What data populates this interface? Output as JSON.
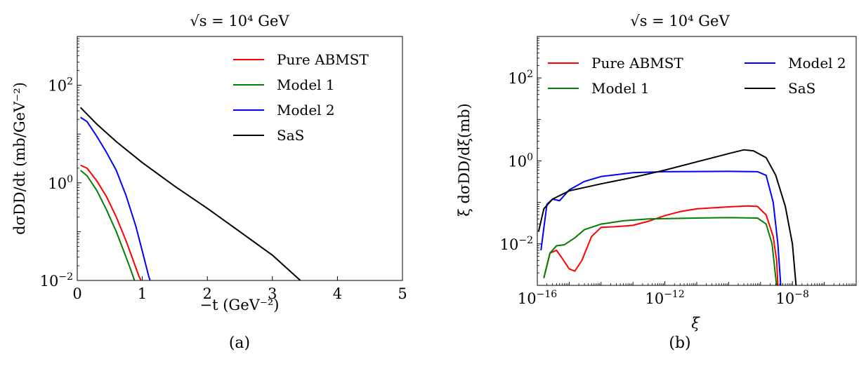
{
  "figure": {
    "panels": [
      {
        "title": "√s = 10⁴ GeV",
        "xlabel": "−t (GeV⁻²)",
        "ylabel": "dσDD/dt (mb/GeV⁻²)",
        "caption": "(a)"
      },
      {
        "title": "√s = 10⁴ GeV",
        "xlabel": "ξ",
        "ylabel": "ξ dσDD/dξ(mb)",
        "caption": "(b)"
      }
    ]
  },
  "chart_data": [
    {
      "type": "line",
      "title": "√s = 10⁴ GeV",
      "xlabel": "−t (GeV⁻²)",
      "ylabel": "dσDD/dt (mb/GeV⁻²)",
      "xscale": "linear",
      "yscale": "log",
      "xlim": [
        0,
        5
      ],
      "ylim": [
        0.01,
        1000
      ],
      "xticks": [
        0,
        1,
        2,
        3,
        4,
        5
      ],
      "xtick_labels": [
        "0",
        "1",
        "2",
        "3",
        "4",
        "5"
      ],
      "yticks": [
        0.01,
        1,
        100
      ],
      "ytick_labels": [
        [
          "10",
          "−2"
        ],
        [
          "10",
          "0"
        ],
        [
          "10",
          "2"
        ]
      ],
      "legend_position": "top-right",
      "legend_columns": 1,
      "series": [
        {
          "name": "Pure ABMST",
          "color": "#ff0000",
          "points": [
            [
              0.05,
              2.3
            ],
            [
              0.15,
              2.0
            ],
            [
              0.3,
              1.1
            ],
            [
              0.45,
              0.52
            ],
            [
              0.6,
              0.2
            ],
            [
              0.75,
              0.065
            ],
            [
              0.85,
              0.028
            ],
            [
              0.95,
              0.012
            ],
            [
              0.98,
              0.01
            ]
          ]
        },
        {
          "name": "Model 1",
          "color": "#008000",
          "points": [
            [
              0.05,
              1.8
            ],
            [
              0.15,
              1.4
            ],
            [
              0.3,
              0.7
            ],
            [
              0.45,
              0.28
            ],
            [
              0.6,
              0.1
            ],
            [
              0.7,
              0.045
            ],
            [
              0.8,
              0.02
            ],
            [
              0.88,
              0.01
            ]
          ]
        },
        {
          "name": "Model 2",
          "color": "#0000ff",
          "points": [
            [
              0.05,
              22
            ],
            [
              0.15,
              18
            ],
            [
              0.3,
              9
            ],
            [
              0.45,
              4.2
            ],
            [
              0.6,
              1.8
            ],
            [
              0.75,
              0.55
            ],
            [
              0.9,
              0.13
            ],
            [
              1.0,
              0.04
            ],
            [
              1.1,
              0.012
            ],
            [
              1.12,
              0.01
            ]
          ]
        },
        {
          "name": "SaS",
          "color": "#000000",
          "points": [
            [
              0.05,
              35
            ],
            [
              0.3,
              16
            ],
            [
              0.6,
              7
            ],
            [
              1.0,
              2.6
            ],
            [
              1.5,
              0.85
            ],
            [
              2.0,
              0.3
            ],
            [
              2.5,
              0.1
            ],
            [
              3.0,
              0.033
            ],
            [
              3.43,
              0.01
            ]
          ]
        }
      ]
    },
    {
      "type": "line",
      "title": "√s = 10⁴ GeV",
      "xlabel": "ξ",
      "ylabel": "ξ dσDD/dξ(mb)",
      "xscale": "log",
      "yscale": "log",
      "xlim": [
        1e-16,
        1e-06
      ],
      "ylim": [
        0.001,
        1000
      ],
      "xticks": [
        1e-16,
        1e-12,
        1e-08
      ],
      "xtick_labels": [
        [
          "10",
          "−16"
        ],
        [
          "10",
          "−12"
        ],
        [
          "10",
          "−8"
        ]
      ],
      "yticks": [
        0.01,
        1,
        100
      ],
      "ytick_labels": [
        [
          "10",
          "−2"
        ],
        [
          "10",
          "0"
        ],
        [
          "10",
          "2"
        ]
      ],
      "legend_position": "top",
      "legend_columns": 2,
      "series": [
        {
          "name": "Pure ABMST",
          "color": "#ff0000",
          "points": [
            [
              1.6e-16,
              0.0015
            ],
            [
              2.5e-16,
              0.006
            ],
            [
              4e-16,
              0.007
            ],
            [
              6e-16,
              0.0045
            ],
            [
              1e-15,
              0.0025
            ],
            [
              1.5e-15,
              0.0022
            ],
            [
              2.5e-15,
              0.004
            ],
            [
              5e-15,
              0.015
            ],
            [
              1e-14,
              0.025
            ],
            [
              3e-14,
              0.026
            ],
            [
              1e-13,
              0.028
            ],
            [
              3e-13,
              0.035
            ],
            [
              1e-12,
              0.048
            ],
            [
              3e-12,
              0.06
            ],
            [
              1e-11,
              0.07
            ],
            [
              1e-10,
              0.078
            ],
            [
              4e-10,
              0.082
            ],
            [
              8e-10,
              0.08
            ],
            [
              1.5e-09,
              0.05
            ],
            [
              2.5e-09,
              0.015
            ],
            [
              3.2e-09,
              0.004
            ],
            [
              3.5e-09,
              0.001
            ]
          ]
        },
        {
          "name": "Model 1",
          "color": "#008000",
          "points": [
            [
              1.6e-16,
              0.0015
            ],
            [
              2.5e-16,
              0.006
            ],
            [
              4e-16,
              0.009
            ],
            [
              7e-16,
              0.0095
            ],
            [
              1.5e-15,
              0.014
            ],
            [
              3e-15,
              0.022
            ],
            [
              1e-14,
              0.03
            ],
            [
              5e-14,
              0.036
            ],
            [
              3e-13,
              0.04
            ],
            [
              1e-11,
              0.042
            ],
            [
              1e-10,
              0.043
            ],
            [
              8e-10,
              0.042
            ],
            [
              1.5e-09,
              0.03
            ],
            [
              2.3e-09,
              0.01
            ],
            [
              3e-09,
              0.0015
            ],
            [
              3.2e-09,
              0.001
            ]
          ]
        },
        {
          "name": "Model 2",
          "color": "#0000ff",
          "points": [
            [
              1.3e-16,
              0.007
            ],
            [
              2e-16,
              0.09
            ],
            [
              3e-16,
              0.12
            ],
            [
              5e-16,
              0.11
            ],
            [
              1e-15,
              0.2
            ],
            [
              3e-15,
              0.32
            ],
            [
              1e-14,
              0.42
            ],
            [
              1e-13,
              0.52
            ],
            [
              1e-12,
              0.55
            ],
            [
              1e-10,
              0.56
            ],
            [
              8e-10,
              0.55
            ],
            [
              1.5e-09,
              0.45
            ],
            [
              2.5e-09,
              0.1
            ],
            [
              3.5e-09,
              0.01
            ],
            [
              4.3e-09,
              0.001
            ]
          ]
        },
        {
          "name": "SaS",
          "color": "#000000",
          "points": [
            [
              1.1e-16,
              0.02
            ],
            [
              1.6e-16,
              0.07
            ],
            [
              3e-16,
              0.12
            ],
            [
              1e-15,
              0.19
            ],
            [
              1e-14,
              0.28
            ],
            [
              1e-13,
              0.4
            ],
            [
              1e-12,
              0.6
            ],
            [
              1e-11,
              0.95
            ],
            [
              1e-10,
              1.5
            ],
            [
              3e-10,
              1.85
            ],
            [
              6e-10,
              1.75
            ],
            [
              1.5e-09,
              1.2
            ],
            [
              3e-09,
              0.45
            ],
            [
              6e-09,
              0.08
            ],
            [
              1e-08,
              0.01
            ],
            [
              1.3e-08,
              0.001
            ]
          ]
        }
      ]
    }
  ]
}
